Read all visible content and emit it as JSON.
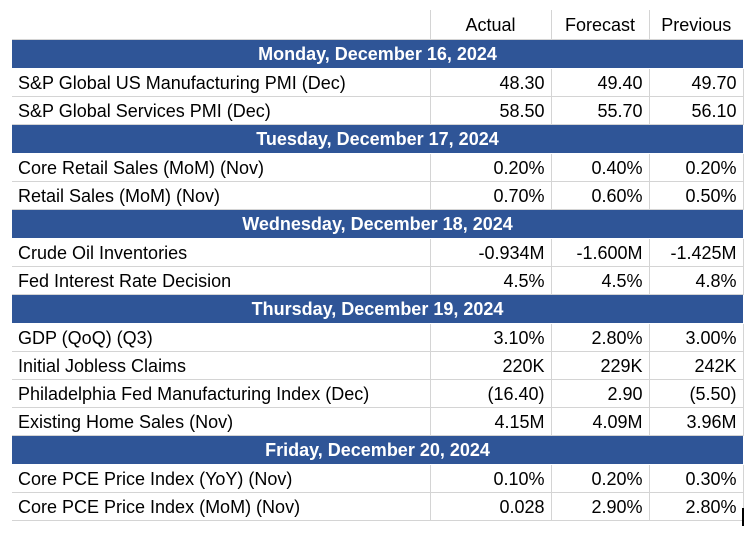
{
  "columns": {
    "actual": "Actual",
    "forecast": "Forecast",
    "previous": "Previous"
  },
  "days": [
    {
      "date": "Monday, December 16, 2024",
      "rows": [
        {
          "name": "S&P Global US Manufacturing PMI (Dec)",
          "actual": "48.30",
          "forecast": "49.40",
          "previous": "49.70"
        },
        {
          "name": "S&P Global Services PMI (Dec)",
          "actual": "58.50",
          "forecast": "55.70",
          "previous": "56.10"
        }
      ]
    },
    {
      "date": "Tuesday, December 17, 2024",
      "rows": [
        {
          "name": "Core Retail Sales (MoM) (Nov)",
          "actual": "0.20%",
          "forecast": "0.40%",
          "previous": "0.20%"
        },
        {
          "name": "Retail Sales (MoM) (Nov)",
          "actual": "0.70%",
          "forecast": "0.60%",
          "previous": "0.50%"
        }
      ]
    },
    {
      "date": "Wednesday, December 18, 2024",
      "rows": [
        {
          "name": "Crude Oil Inventories",
          "actual": "-0.934M",
          "forecast": "-1.600M",
          "previous": "-1.425M"
        },
        {
          "name": "Fed Interest Rate Decision",
          "actual": "4.5%",
          "forecast": "4.5%",
          "previous": "4.8%"
        }
      ]
    },
    {
      "date": "Thursday, December 19, 2024",
      "rows": [
        {
          "name": "GDP (QoQ) (Q3)",
          "actual": "3.10%",
          "forecast": "2.80%",
          "previous": "3.00%"
        },
        {
          "name": "Initial Jobless Claims",
          "actual": "220K",
          "forecast": "229K",
          "previous": "242K"
        },
        {
          "name": "Philadelphia Fed Manufacturing Index (Dec)",
          "actual": "(16.40)",
          "forecast": "2.90",
          "previous": "(5.50)"
        },
        {
          "name": "Existing Home Sales (Nov)",
          "actual": "4.15M",
          "forecast": "4.09M",
          "previous": "3.96M"
        }
      ]
    },
    {
      "date": "Friday, December 20, 2024",
      "rows": [
        {
          "name": "Core PCE Price Index (YoY) (Nov)",
          "actual": "0.10%",
          "forecast": "0.20%",
          "previous": "0.30%"
        },
        {
          "name": "Core PCE Price Index (MoM) (Nov)",
          "actual": "0.028",
          "forecast": "2.90%",
          "previous": "2.80%"
        }
      ]
    }
  ],
  "colors": {
    "date_header_bg": "#2f5597",
    "date_header_text": "#ffffff",
    "grid": "#d4d4d4"
  }
}
